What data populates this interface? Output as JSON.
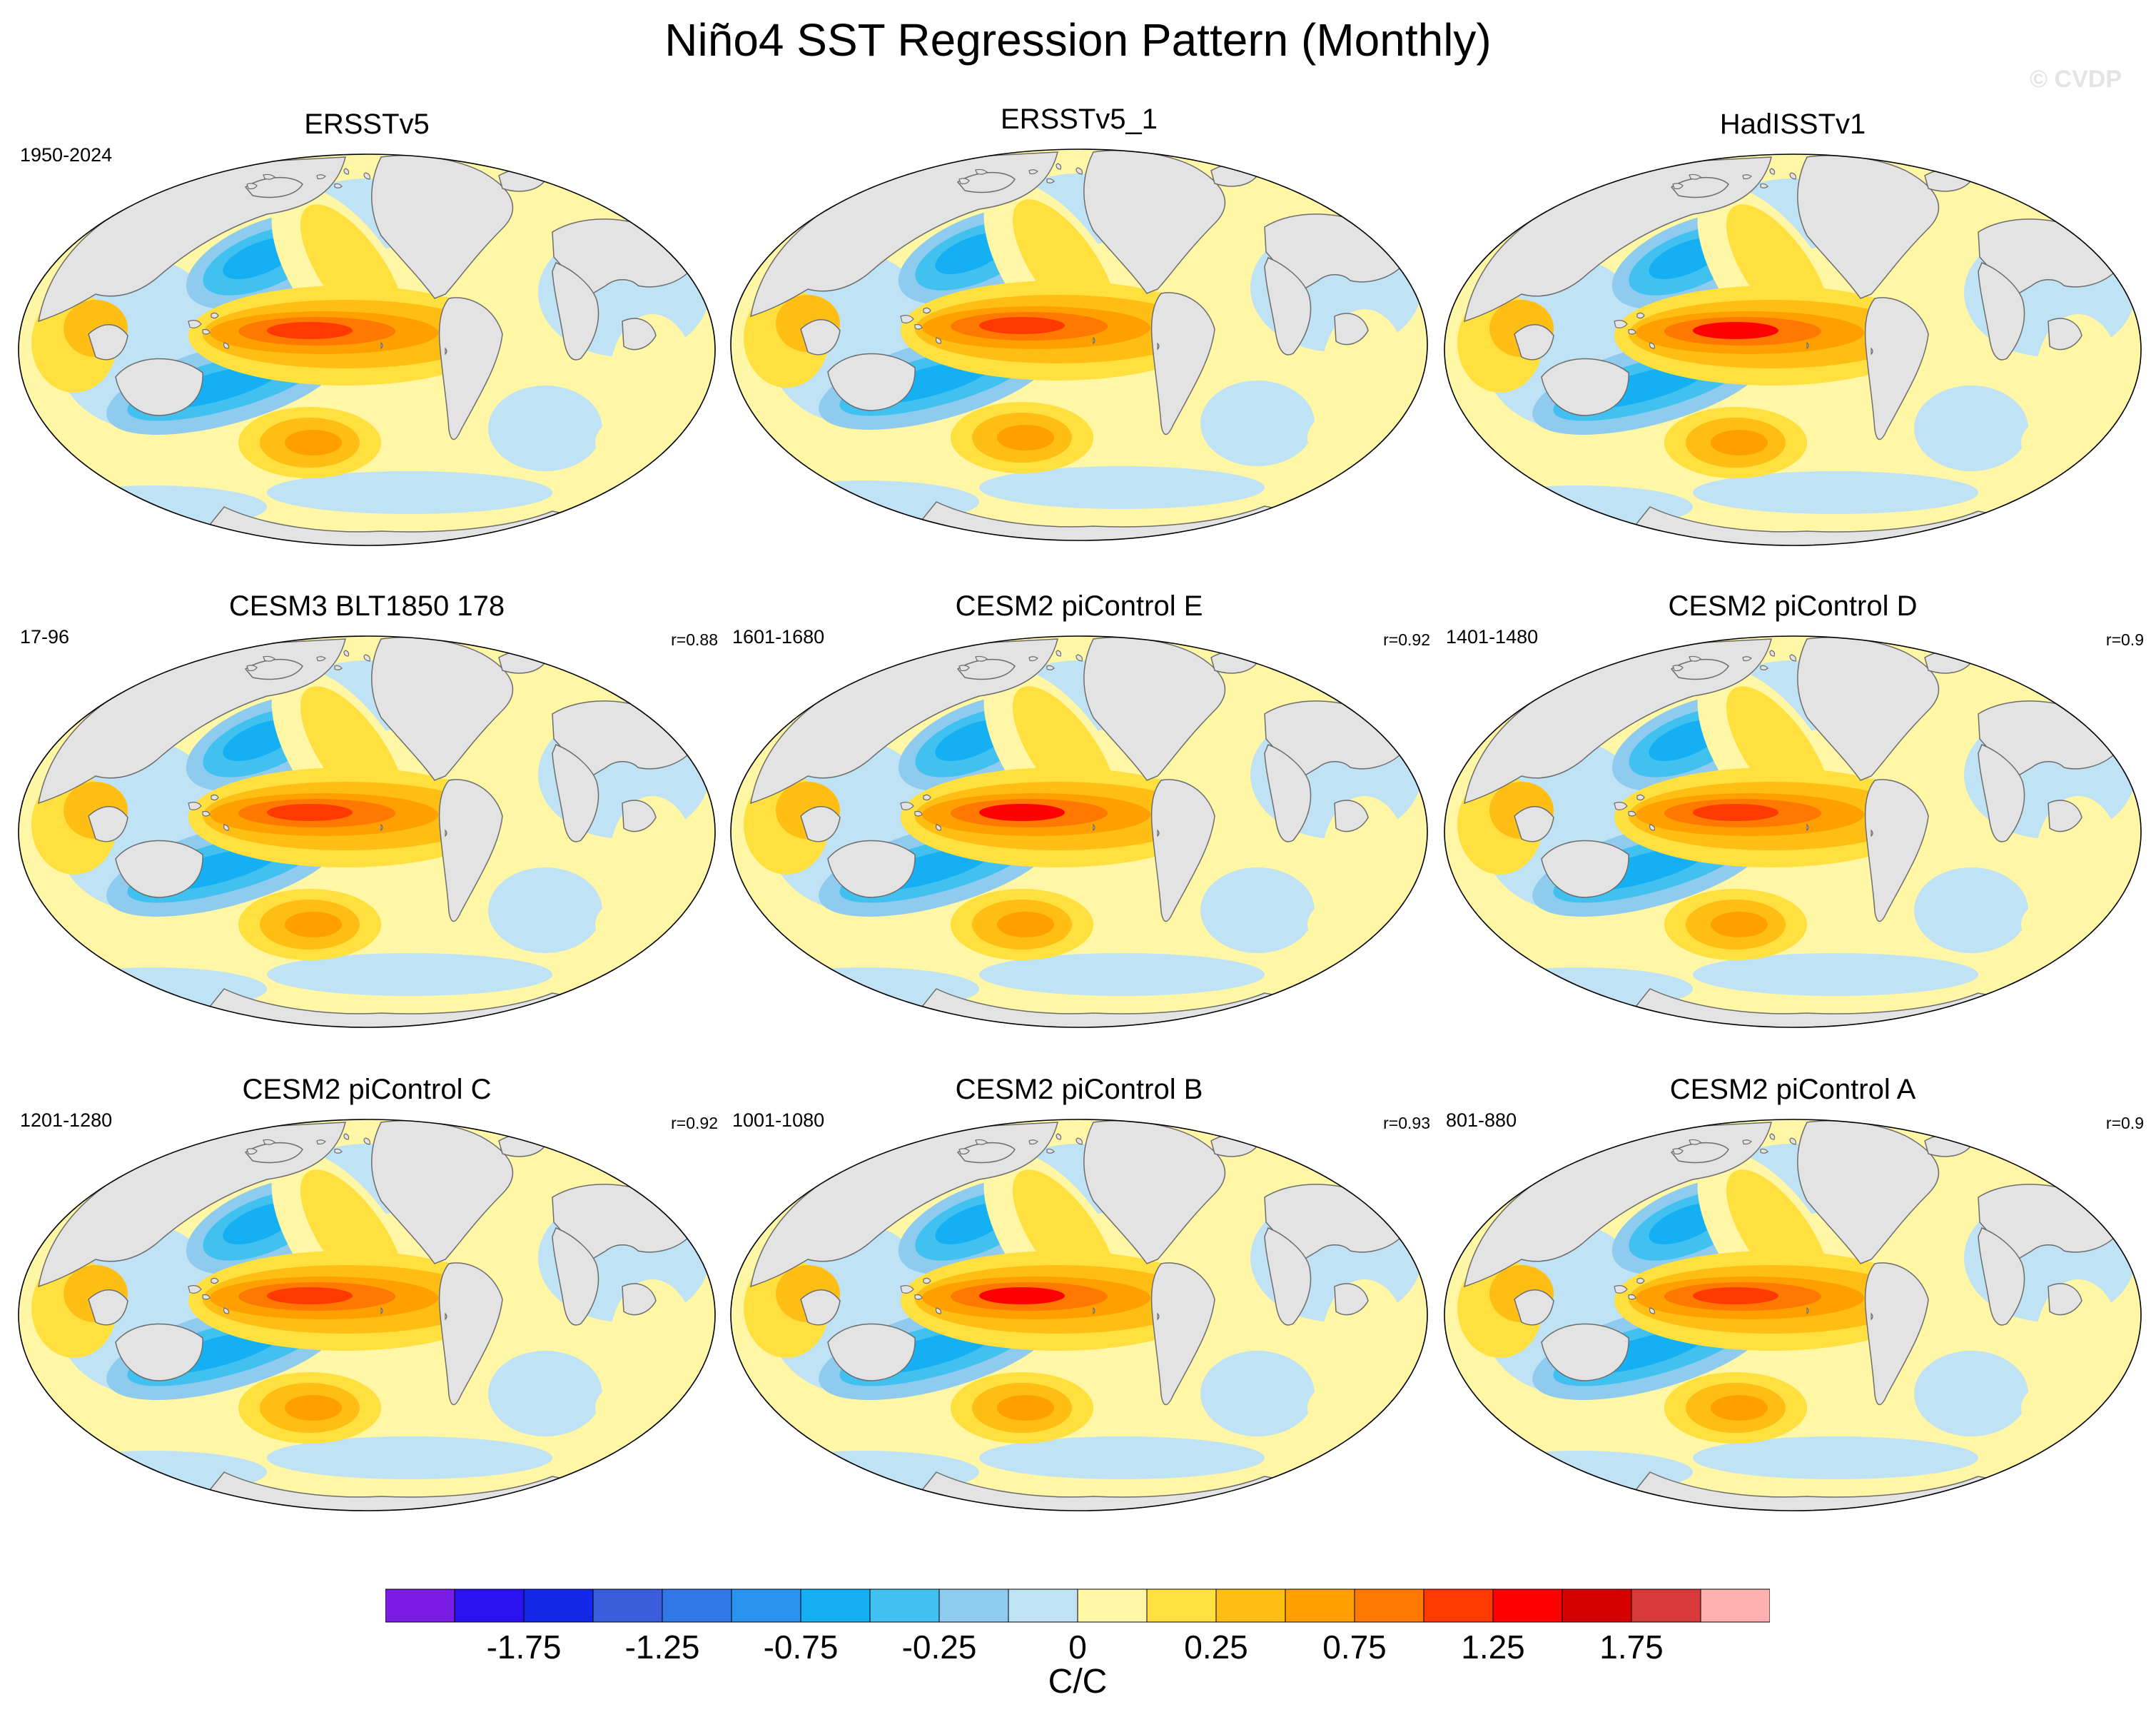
{
  "chart_data": {
    "type": "heatmap",
    "title": "Niño4 SST Regression Pattern (Monthly)",
    "watermark": "© CVDP",
    "units": "C/C",
    "colorbar": {
      "colors": [
        "#7b1ce6",
        "#2c12f1",
        "#1228e8",
        "#3a5ddc",
        "#2f78e6",
        "#2a93ef",
        "#14b0f3",
        "#41c1f0",
        "#8ecbee",
        "#bfe2f4",
        "#fff6a6",
        "#ffe03e",
        "#ffbe14",
        "#ffa000",
        "#ff7800",
        "#ff3a00",
        "#ff0000",
        "#d60000",
        "#d83a3a",
        "#ffb0b0"
      ],
      "tick_labels": [
        "-1.75",
        "-1.25",
        "-0.75",
        "-0.25",
        "0",
        "0.25",
        "0.75",
        "1.25",
        "1.75"
      ]
    },
    "panels": [
      {
        "name": "ERSSTv5",
        "period": "1950-2024",
        "correlation": "",
        "peak": 1.55
      },
      {
        "name": "ERSSTv5_1",
        "period": "",
        "correlation": "",
        "peak": 1.45
      },
      {
        "name": "HadISSTv1",
        "period": "",
        "correlation": "",
        "peak": 1.7
      },
      {
        "name": "CESM3 BLT1850 178",
        "period": "17-96",
        "correlation": "r=0.88",
        "peak": 1.5
      },
      {
        "name": "CESM2 piControl E",
        "period": "1601-1680",
        "correlation": "r=0.92",
        "peak": 1.7
      },
      {
        "name": "CESM2 piControl D",
        "period": "1401-1480",
        "correlation": "r=0.9",
        "peak": 1.45
      },
      {
        "name": "CESM2 piControl C",
        "period": "1201-1280",
        "correlation": "r=0.92",
        "peak": 1.55
      },
      {
        "name": "CESM2 piControl B",
        "period": "1001-1080",
        "correlation": "r=0.93",
        "peak": 1.65
      },
      {
        "name": "CESM2 piControl A",
        "period": "801-880",
        "correlation": "r=0.9",
        "peak": 1.5
      }
    ]
  }
}
